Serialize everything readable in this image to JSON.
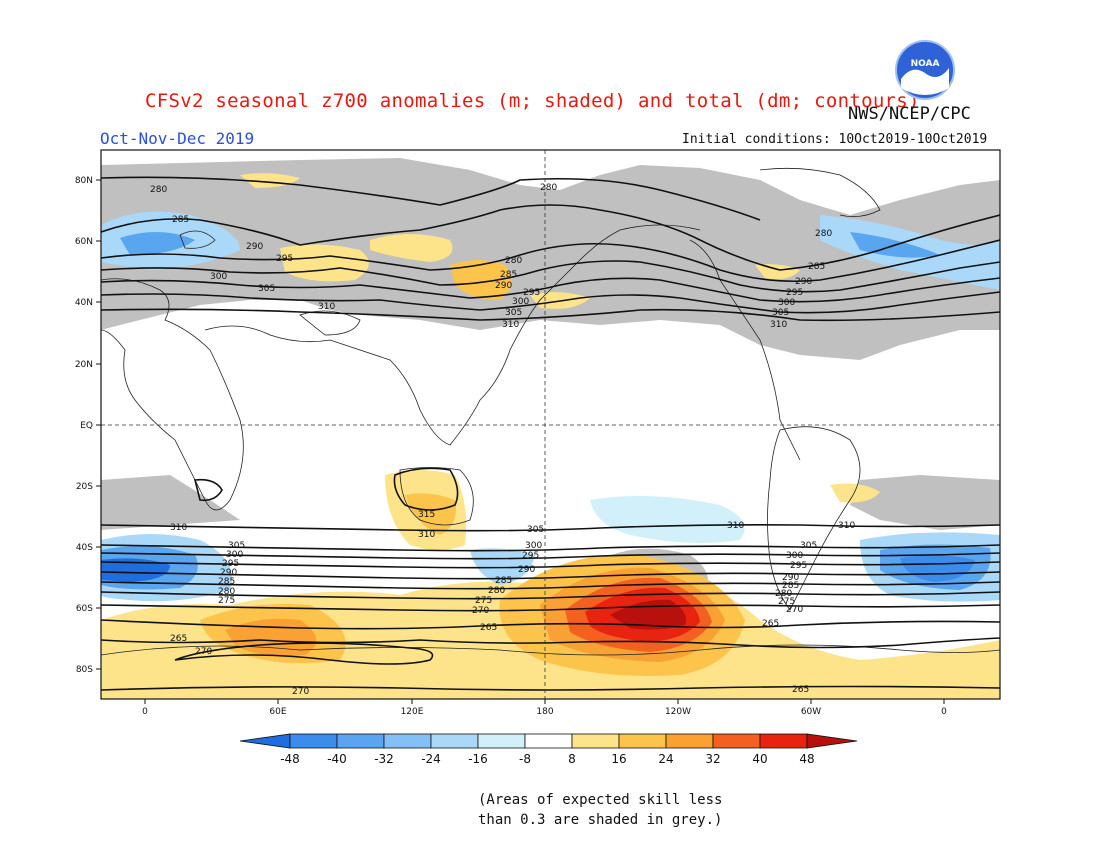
{
  "header": {
    "title": "CFSv2 seasonal z700 anomalies (m; shaded) and total (dm; contours)",
    "agency": "NWS/NCEP/CPC",
    "season": "Oct-Nov-Dec 2019",
    "initial_conditions": "Initial conditions: 10Oct2019-10Oct2019",
    "logo_text": "NOAA"
  },
  "map": {
    "lat_labels": [
      "80N",
      "60N",
      "40N",
      "20N",
      "EQ",
      "20S",
      "40S",
      "60S",
      "80S"
    ],
    "lon_labels": [
      "0",
      "60E",
      "120E",
      "180",
      "120W",
      "60W",
      "0"
    ],
    "contour_labels": [
      "280",
      "285",
      "290",
      "295",
      "300",
      "305",
      "310",
      "315",
      "265",
      "270",
      "275"
    ]
  },
  "colorbar": {
    "labels": [
      "-48",
      "-40",
      "-32",
      "-24",
      "-16",
      "-8",
      "8",
      "16",
      "24",
      "32",
      "40",
      "48"
    ],
    "colors": [
      "#1e6ee0",
      "#3c8ceb",
      "#5aa5f0",
      "#82c0f5",
      "#aad8f8",
      "#d2f0fa",
      "#ffffff",
      "#fde38a",
      "#fcc44a",
      "#f9a133",
      "#f4601f",
      "#e8230f",
      "#b8100c"
    ]
  },
  "note": {
    "line1": "(Areas of expected skill less",
    "line2": "than 0.3 are shaded in grey.)"
  }
}
